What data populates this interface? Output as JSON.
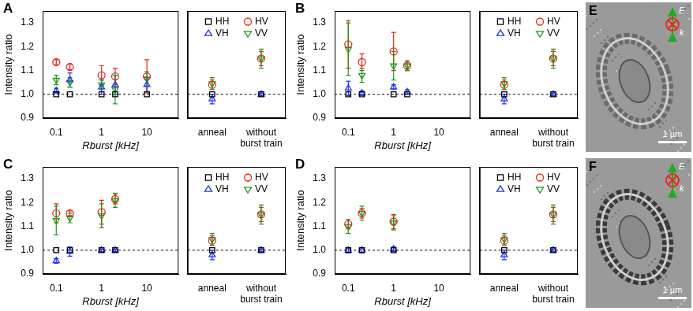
{
  "chart_data": [
    {
      "type": "scatter",
      "title": "A",
      "x_label": "Rburst [kHz]",
      "y_label": "Intensity ratio",
      "log": "x",
      "xlim": [
        0.05,
        50
      ],
      "xticks": [
        0.1,
        1,
        10
      ],
      "ylim": [
        0.9,
        1.35
      ],
      "yticks": [
        0.9,
        {
          "value": 1,
          "label": "1.0"
        },
        1.1,
        1.2,
        1.3
      ],
      "reference_line": 1,
      "x": [
        0.1,
        0.2,
        1,
        2,
        10
      ],
      "series": [
        {
          "name": "HH",
          "color": "#000000",
          "marker": "square",
          "values": [
            1,
            1,
            1,
            1,
            1
          ],
          "yerr": [
            0,
            0,
            0,
            0,
            0
          ]
        },
        {
          "name": "HV",
          "color": "#e8271e",
          "marker": "circle",
          "values": [
            1.135,
            1.115,
            1.08,
            1.075,
            1.075
          ],
          "yerr": [
            0.01,
            0.01,
            0.04,
            0.035,
            0.07
          ]
        },
        {
          "name": "VH",
          "color": "#2233ee",
          "marker": "triangle-up",
          "values": [
            1.015,
            1.06,
            1.03,
            1.04,
            1.04
          ],
          "yerr": [
            0.01,
            0.03,
            0.03,
            0.04,
            0.03
          ]
        },
        {
          "name": "VV",
          "color": "#1f9a1f",
          "marker": "triangle-down",
          "values": [
            1.06,
            1.05,
            1.04,
            1.02,
            1.065
          ],
          "yerr": [
            0.02,
            0.02,
            0.02,
            0.06,
            0.03
          ]
        }
      ]
    },
    {
      "type": "scatter",
      "categories": [
        "anneal",
        "without burst train"
      ],
      "ylim": [
        0.9,
        1.35
      ],
      "yticks": [
        0.9,
        {
          "value": 1,
          "label": "1.0"
        },
        1.1,
        1.2,
        1.3
      ],
      "tick_labels": "x",
      "legend": "top right",
      "reference_line": 1,
      "series": [
        {
          "name": "HH",
          "color": "#000000",
          "marker": "square",
          "values": [
            1,
            1
          ],
          "yerr": [
            0,
            0
          ]
        },
        {
          "name": "HV",
          "color": "#e8271e",
          "marker": "circle",
          "values": [
            1.04,
            1.15
          ],
          "yerr": [
            0.02,
            0.03
          ]
        },
        {
          "name": "VH",
          "color": "#2233ee",
          "marker": "triangle-up",
          "values": [
            0.98,
            1.0
          ],
          "yerr": [
            0.02,
            0.005
          ]
        },
        {
          "name": "VV",
          "color": "#1f9a1f",
          "marker": "triangle-down",
          "values": [
            1.045,
            1.15
          ],
          "yerr": [
            0.025,
            0.04
          ]
        }
      ]
    },
    {
      "type": "scatter",
      "title": "B",
      "x_label": "Rburst [kHz]",
      "y_label": "Intensity ratio",
      "log": "x",
      "xlim": [
        0.05,
        50
      ],
      "xticks": [
        0.1,
        1,
        10
      ],
      "ylim": [
        0.9,
        1.35
      ],
      "yticks": [
        0.9,
        {
          "value": 1,
          "label": "1.0"
        },
        1.1,
        1.2,
        1.3
      ],
      "reference_line": 1,
      "x": [
        0.1,
        0.2,
        1,
        2
      ],
      "series": [
        {
          "name": "HH",
          "color": "#000000",
          "marker": "square",
          "values": [
            1,
            1,
            1,
            1
          ],
          "yerr": [
            0,
            0,
            0,
            0
          ]
        },
        {
          "name": "HV",
          "color": "#e8271e",
          "marker": "circle",
          "values": [
            1.21,
            1.135,
            1.18,
            1.12
          ],
          "yerr": [
            0.1,
            0.035,
            0.08,
            0.02
          ]
        },
        {
          "name": "VH",
          "color": "#2233ee",
          "marker": "triangle-up",
          "values": [
            1.025,
            1.005,
            1.03,
            1.01
          ],
          "yerr": [
            0.03,
            0.01,
            0.01,
            0.01
          ]
        },
        {
          "name": "VV",
          "color": "#1f9a1f",
          "marker": "triangle-down",
          "values": [
            1.19,
            1.08,
            1.12,
            1.12
          ],
          "yerr": [
            0.11,
            0.03,
            0.06,
            0.02
          ]
        }
      ]
    },
    {
      "type": "scatter",
      "categories": [
        "anneal",
        "without burst train"
      ],
      "ylim": [
        0.9,
        1.35
      ],
      "yticks": [
        0.9,
        {
          "value": 1,
          "label": "1.0"
        },
        1.1,
        1.2,
        1.3
      ],
      "tick_labels": "x",
      "legend": "top right",
      "reference_line": 1,
      "series": [
        {
          "name": "HH",
          "color": "#000000",
          "marker": "square",
          "values": [
            1,
            1
          ],
          "yerr": [
            0,
            0
          ]
        },
        {
          "name": "HV",
          "color": "#e8271e",
          "marker": "circle",
          "values": [
            1.04,
            1.15
          ],
          "yerr": [
            0.02,
            0.03
          ]
        },
        {
          "name": "VH",
          "color": "#2233ee",
          "marker": "triangle-up",
          "values": [
            0.98,
            1.0
          ],
          "yerr": [
            0.02,
            0.005
          ]
        },
        {
          "name": "VV",
          "color": "#1f9a1f",
          "marker": "triangle-down",
          "values": [
            1.045,
            1.15
          ],
          "yerr": [
            0.025,
            0.04
          ]
        }
      ]
    },
    {
      "type": "scatter",
      "title": "C",
      "x_label": "Rburst [kHz]",
      "y_label": "Intensity ratio",
      "log": "x",
      "xlim": [
        0.05,
        50
      ],
      "xticks": [
        0.1,
        1,
        10
      ],
      "ylim": [
        0.9,
        1.35
      ],
      "yticks": [
        0.9,
        {
          "value": 1,
          "label": "1.0"
        },
        1.1,
        1.2,
        1.3
      ],
      "reference_line": 1,
      "x": [
        0.1,
        0.2,
        1,
        2
      ],
      "series": [
        {
          "name": "HH",
          "color": "#000000",
          "marker": "square",
          "values": [
            1,
            1,
            1,
            1
          ],
          "yerr": [
            0,
            0,
            0,
            0
          ]
        },
        {
          "name": "HV",
          "color": "#e8271e",
          "marker": "circle",
          "values": [
            1.155,
            1.155,
            1.16,
            1.215
          ],
          "yerr": [
            0.04,
            0.01,
            0.05,
            0.02
          ]
        },
        {
          "name": "VH",
          "color": "#2233ee",
          "marker": "triangle-up",
          "values": [
            0.955,
            0.995,
            1.0,
            1.0
          ],
          "yerr": [
            0.01,
            0.02,
            0.005,
            0.005
          ]
        },
        {
          "name": "VV",
          "color": "#1f9a1f",
          "marker": "triangle-down",
          "values": [
            1.125,
            1.135,
            1.145,
            1.21
          ],
          "yerr": [
            0.06,
            0.02,
            0.05,
            0.03
          ]
        }
      ]
    },
    {
      "type": "scatter",
      "categories": [
        "anneal",
        "without burst train"
      ],
      "ylim": [
        0.9,
        1.35
      ],
      "yticks": [
        0.9,
        {
          "value": 1,
          "label": "1.0"
        },
        1.1,
        1.2,
        1.3
      ],
      "tick_labels": "x",
      "legend": "top right",
      "reference_line": 1,
      "series": [
        {
          "name": "HH",
          "color": "#000000",
          "marker": "square",
          "values": [
            1,
            1
          ],
          "yerr": [
            0,
            0
          ]
        },
        {
          "name": "HV",
          "color": "#e8271e",
          "marker": "circle",
          "values": [
            1.04,
            1.15
          ],
          "yerr": [
            0.02,
            0.03
          ]
        },
        {
          "name": "VH",
          "color": "#2233ee",
          "marker": "triangle-up",
          "values": [
            0.98,
            1.0
          ],
          "yerr": [
            0.02,
            0.005
          ]
        },
        {
          "name": "VV",
          "color": "#1f9a1f",
          "marker": "triangle-down",
          "values": [
            1.045,
            1.15
          ],
          "yerr": [
            0.025,
            0.04
          ]
        }
      ]
    },
    {
      "type": "scatter",
      "title": "D",
      "x_label": "Rburst [kHz]",
      "y_label": "Intensity ratio",
      "log": "x",
      "xlim": [
        0.05,
        50
      ],
      "xticks": [
        0.1,
        1,
        10
      ],
      "ylim": [
        0.9,
        1.35
      ],
      "yticks": [
        0.9,
        {
          "value": 1,
          "label": "1.0"
        },
        1.1,
        1.2,
        1.3
      ],
      "reference_line": 1,
      "x": [
        0.1,
        0.2,
        1
      ],
      "series": [
        {
          "name": "HH",
          "color": "#000000",
          "marker": "square",
          "values": [
            1,
            1,
            1
          ],
          "yerr": [
            0,
            0,
            0
          ]
        },
        {
          "name": "HV",
          "color": "#e8271e",
          "marker": "circle",
          "values": [
            1.11,
            1.155,
            1.12
          ],
          "yerr": [
            0.02,
            0.02,
            0.03
          ]
        },
        {
          "name": "VH",
          "color": "#2233ee",
          "marker": "triangle-up",
          "values": [
            1.0,
            1.0,
            1.005
          ],
          "yerr": [
            0.01,
            0.01,
            0.01
          ]
        },
        {
          "name": "VV",
          "color": "#1f9a1f",
          "marker": "triangle-down",
          "values": [
            1.1,
            1.155,
            1.115
          ],
          "yerr": [
            0.03,
            0.03,
            0.03
          ]
        }
      ]
    },
    {
      "type": "scatter",
      "categories": [
        "anneal",
        "without burst train"
      ],
      "ylim": [
        0.9,
        1.35
      ],
      "yticks": [
        0.9,
        {
          "value": 1,
          "label": "1.0"
        },
        1.1,
        1.2,
        1.3
      ],
      "tick_labels": "x",
      "legend": "top right",
      "reference_line": 1,
      "series": [
        {
          "name": "HH",
          "color": "#000000",
          "marker": "square",
          "values": [
            1,
            1
          ],
          "yerr": [
            0,
            0
          ]
        },
        {
          "name": "HV",
          "color": "#e8271e",
          "marker": "circle",
          "values": [
            1.04,
            1.15
          ],
          "yerr": [
            0.02,
            0.03
          ]
        },
        {
          "name": "VH",
          "color": "#2233ee",
          "marker": "triangle-up",
          "values": [
            0.98,
            1.0
          ],
          "yerr": [
            0.02,
            0.005
          ]
        },
        {
          "name": "VV",
          "color": "#1f9a1f",
          "marker": "triangle-down",
          "values": [
            1.045,
            1.15
          ],
          "yerr": [
            0.025,
            0.04
          ]
        }
      ]
    }
  ],
  "images": [
    {
      "label": "E",
      "scale_bar": "1 µm",
      "field": "E",
      "wavevector": "k"
    },
    {
      "label": "F",
      "scale_bar": "1 µm",
      "field": "E",
      "wavevector": "k"
    }
  ]
}
